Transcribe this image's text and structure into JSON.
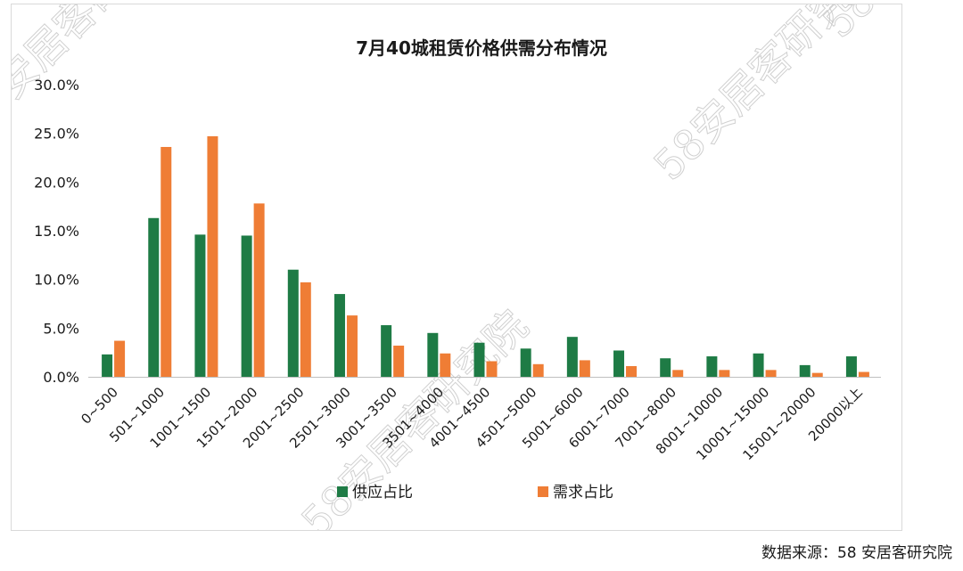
{
  "chart_data": {
    "type": "bar",
    "title": "7月40城租赁价格供需分布情况",
    "categories": [
      "0~500",
      "501~1000",
      "1001~1500",
      "1501~2000",
      "2001~2500",
      "2501~3000",
      "3001~3500",
      "3501~4000",
      "4001~4500",
      "4501~5000",
      "5001~6000",
      "6001~7000",
      "7001~8000",
      "8001~10000",
      "10001~15000",
      "15001~20000",
      "20000以上"
    ],
    "series": [
      {
        "name": "供应占比",
        "color": "#1e7b45",
        "values": [
          2.3,
          16.3,
          14.6,
          14.5,
          11.0,
          8.5,
          5.3,
          4.5,
          3.5,
          2.9,
          4.1,
          2.7,
          1.9,
          2.1,
          2.4,
          1.2,
          2.1
        ]
      },
      {
        "name": "需求占比",
        "color": "#ef7d35",
        "values": [
          3.7,
          23.6,
          24.7,
          17.8,
          9.7,
          6.3,
          3.2,
          2.4,
          1.6,
          1.3,
          1.7,
          1.1,
          0.7,
          0.7,
          0.7,
          0.4,
          0.5
        ]
      }
    ],
    "ylim": [
      0,
      30
    ],
    "yticks": [
      "0.0%",
      "5.0%",
      "10.0%",
      "15.0%",
      "20.0%",
      "25.0%",
      "30.0%"
    ],
    "ytick_values": [
      0,
      5,
      10,
      15,
      20,
      25,
      30
    ],
    "legend_position": "bottom",
    "grid": false
  },
  "source_text": "数据来源：58 安居客研究院",
  "watermark_text": "58安居客研究院"
}
